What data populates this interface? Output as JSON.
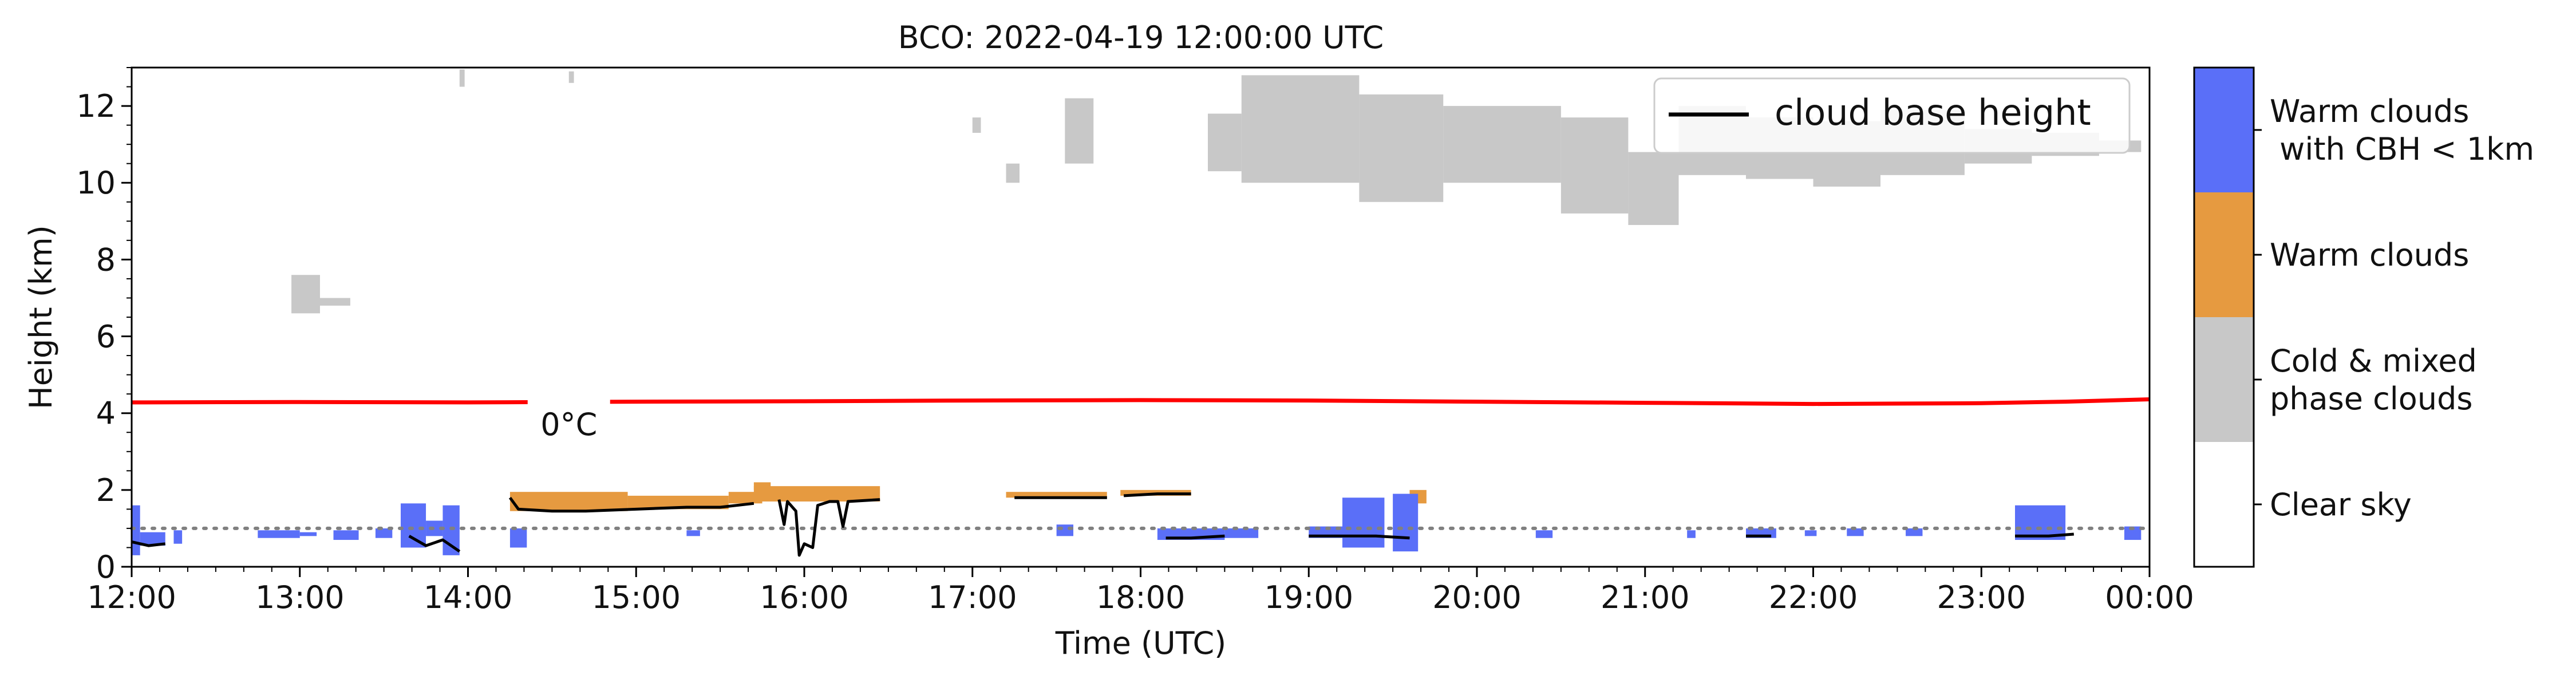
{
  "chart_data": {
    "type": "heatmap",
    "title": "BCO: 2022-04-19 12:00:00 UTC",
    "xlabel": "Time (UTC)",
    "ylabel": "Height (km)",
    "xlim_hours": [
      12,
      24
    ],
    "ylim": [
      0,
      13
    ],
    "x_tick_labels": [
      "12:00",
      "13:00",
      "14:00",
      "15:00",
      "16:00",
      "17:00",
      "18:00",
      "19:00",
      "20:00",
      "21:00",
      "22:00",
      "23:00",
      "00:00"
    ],
    "y_ticks": [
      0,
      2,
      4,
      6,
      8,
      10,
      12
    ],
    "legend": {
      "location": "upper right",
      "entries": [
        {
          "label": "cloud base height",
          "color": "#000000"
        }
      ]
    },
    "freezing_level": {
      "label": "0°C",
      "color": "#ff0000",
      "points": [
        [
          12.0,
          4.28
        ],
        [
          13.0,
          4.29
        ],
        [
          14.0,
          4.28
        ],
        [
          15.0,
          4.3
        ],
        [
          16.0,
          4.31
        ],
        [
          17.0,
          4.33
        ],
        [
          18.0,
          4.34
        ],
        [
          19.0,
          4.33
        ],
        [
          20.0,
          4.3
        ],
        [
          21.0,
          4.27
        ],
        [
          22.0,
          4.24
        ],
        [
          23.0,
          4.26
        ],
        [
          23.5,
          4.3
        ],
        [
          24.0,
          4.36
        ]
      ]
    },
    "reference_line": {
      "height_km": 1.0,
      "color": "#808080",
      "style": "dotted"
    },
    "colorbar": {
      "categories": [
        {
          "label": "Clear sky",
          "color": "#ffffff"
        },
        {
          "label": "Cold & mixed\nphase clouds",
          "color": "#c8c8c8"
        },
        {
          "label": "Warm clouds",
          "color": "#e69a40"
        },
        {
          "label": "Warm clouds\n with CBH < 1km",
          "color": "#5a6ff8"
        }
      ]
    },
    "cloud_regions": [
      {
        "category": "cold_mixed",
        "x": [
          13.95,
          13.98
        ],
        "y": [
          12.5,
          12.95
        ]
      },
      {
        "category": "cold_mixed",
        "x": [
          14.6,
          14.63
        ],
        "y": [
          12.6,
          12.9
        ]
      },
      {
        "category": "cold_mixed",
        "x": [
          12.95,
          13.12
        ],
        "y": [
          6.6,
          7.6
        ]
      },
      {
        "category": "cold_mixed",
        "x": [
          13.12,
          13.3
        ],
        "y": [
          6.8,
          7.0
        ]
      },
      {
        "category": "cold_mixed",
        "x": [
          17.0,
          17.05
        ],
        "y": [
          11.3,
          11.7
        ]
      },
      {
        "category": "cold_mixed",
        "x": [
          17.2,
          17.28
        ],
        "y": [
          10.0,
          10.5
        ]
      },
      {
        "category": "cold_mixed",
        "x": [
          17.55,
          17.72
        ],
        "y": [
          10.5,
          12.2
        ]
      },
      {
        "category": "cold_mixed",
        "x": [
          18.4,
          18.6
        ],
        "y": [
          10.3,
          11.8
        ]
      },
      {
        "category": "cold_mixed",
        "x": [
          18.6,
          19.3
        ],
        "y": [
          10.0,
          12.8
        ]
      },
      {
        "category": "cold_mixed",
        "x": [
          19.3,
          19.8
        ],
        "y": [
          9.5,
          12.3
        ]
      },
      {
        "category": "cold_mixed",
        "x": [
          19.8,
          20.5
        ],
        "y": [
          10.0,
          12.0
        ]
      },
      {
        "category": "cold_mixed",
        "x": [
          20.5,
          20.9
        ],
        "y": [
          9.2,
          11.7
        ]
      },
      {
        "category": "cold_mixed",
        "x": [
          20.9,
          21.2
        ],
        "y": [
          8.9,
          10.8
        ]
      },
      {
        "category": "cold_mixed",
        "x": [
          21.2,
          21.6
        ],
        "y": [
          10.2,
          12.0
        ]
      },
      {
        "category": "cold_mixed",
        "x": [
          21.6,
          22.0
        ],
        "y": [
          10.1,
          11.7
        ]
      },
      {
        "category": "cold_mixed",
        "x": [
          22.0,
          22.4
        ],
        "y": [
          9.9,
          11.6
        ]
      },
      {
        "category": "cold_mixed",
        "x": [
          22.4,
          22.9
        ],
        "y": [
          10.2,
          11.9
        ]
      },
      {
        "category": "cold_mixed",
        "x": [
          22.9,
          23.3
        ],
        "y": [
          10.5,
          11.4
        ]
      },
      {
        "category": "cold_mixed",
        "x": [
          23.3,
          23.7
        ],
        "y": [
          10.7,
          11.3
        ]
      },
      {
        "category": "cold_mixed",
        "x": [
          23.7,
          23.95
        ],
        "y": [
          10.8,
          11.1
        ]
      },
      {
        "category": "warm",
        "x": [
          14.25,
          14.95
        ],
        "y": [
          1.45,
          1.95
        ]
      },
      {
        "category": "warm",
        "x": [
          14.95,
          15.55
        ],
        "y": [
          1.5,
          1.85
        ]
      },
      {
        "category": "warm",
        "x": [
          15.55,
          15.75
        ],
        "y": [
          1.65,
          1.95
        ]
      },
      {
        "category": "warm",
        "x": [
          15.7,
          15.8
        ],
        "y": [
          2.0,
          2.2
        ]
      },
      {
        "category": "warm",
        "x": [
          15.7,
          16.45
        ],
        "y": [
          1.7,
          2.1
        ]
      },
      {
        "category": "warm",
        "x": [
          17.2,
          17.8
        ],
        "y": [
          1.8,
          1.95
        ]
      },
      {
        "category": "warm",
        "x": [
          17.88,
          18.3
        ],
        "y": [
          1.85,
          2.0
        ]
      },
      {
        "category": "warm",
        "x": [
          19.6,
          19.7
        ],
        "y": [
          1.65,
          2.0
        ]
      },
      {
        "category": "warm_low",
        "x": [
          12.0,
          12.05
        ],
        "y": [
          0.3,
          1.6
        ]
      },
      {
        "category": "warm_low",
        "x": [
          12.05,
          12.2
        ],
        "y": [
          0.55,
          0.9
        ]
      },
      {
        "category": "warm_low",
        "x": [
          12.25,
          12.3
        ],
        "y": [
          0.6,
          0.95
        ]
      },
      {
        "category": "warm_low",
        "x": [
          12.75,
          13.0
        ],
        "y": [
          0.75,
          0.95
        ]
      },
      {
        "category": "warm_low",
        "x": [
          13.0,
          13.1
        ],
        "y": [
          0.8,
          0.9
        ]
      },
      {
        "category": "warm_low",
        "x": [
          13.2,
          13.35
        ],
        "y": [
          0.7,
          0.95
        ]
      },
      {
        "category": "warm_low",
        "x": [
          13.45,
          13.55
        ],
        "y": [
          0.75,
          1.0
        ]
      },
      {
        "category": "warm_low",
        "x": [
          13.6,
          13.75
        ],
        "y": [
          0.5,
          1.65
        ]
      },
      {
        "category": "warm_low",
        "x": [
          13.75,
          13.85
        ],
        "y": [
          0.8,
          1.2
        ]
      },
      {
        "category": "warm_low",
        "x": [
          13.85,
          13.95
        ],
        "y": [
          0.3,
          1.6
        ]
      },
      {
        "category": "warm_low",
        "x": [
          14.25,
          14.35
        ],
        "y": [
          0.5,
          1.0
        ]
      },
      {
        "category": "warm_low",
        "x": [
          15.3,
          15.38
        ],
        "y": [
          0.8,
          0.95
        ]
      },
      {
        "category": "warm_low",
        "x": [
          17.5,
          17.6
        ],
        "y": [
          0.8,
          1.1
        ]
      },
      {
        "category": "warm_low",
        "x": [
          18.1,
          18.5
        ],
        "y": [
          0.7,
          1.0
        ]
      },
      {
        "category": "warm_low",
        "x": [
          18.5,
          18.7
        ],
        "y": [
          0.75,
          1.0
        ]
      },
      {
        "category": "warm_low",
        "x": [
          19.0,
          19.2
        ],
        "y": [
          0.75,
          1.05
        ]
      },
      {
        "category": "warm_low",
        "x": [
          19.2,
          19.45
        ],
        "y": [
          0.5,
          1.8
        ]
      },
      {
        "category": "warm_low",
        "x": [
          19.5,
          19.65
        ],
        "y": [
          0.4,
          1.9
        ]
      },
      {
        "category": "warm_low",
        "x": [
          20.35,
          20.45
        ],
        "y": [
          0.75,
          0.95
        ]
      },
      {
        "category": "warm_low",
        "x": [
          21.25,
          21.3
        ],
        "y": [
          0.75,
          0.95
        ]
      },
      {
        "category": "warm_low",
        "x": [
          21.6,
          21.78
        ],
        "y": [
          0.75,
          1.0
        ]
      },
      {
        "category": "warm_low",
        "x": [
          21.95,
          22.02
        ],
        "y": [
          0.8,
          0.95
        ]
      },
      {
        "category": "warm_low",
        "x": [
          22.2,
          22.3
        ],
        "y": [
          0.8,
          1.0
        ]
      },
      {
        "category": "warm_low",
        "x": [
          22.55,
          22.65
        ],
        "y": [
          0.8,
          1.0
        ]
      },
      {
        "category": "warm_low",
        "x": [
          23.2,
          23.5
        ],
        "y": [
          0.7,
          1.6
        ]
      },
      {
        "category": "warm_low",
        "x": [
          23.85,
          23.95
        ],
        "y": [
          0.7,
          1.05
        ]
      }
    ],
    "cloud_base_height": [
      [
        [
          12.0,
          0.65
        ],
        [
          12.1,
          0.55
        ],
        [
          12.2,
          0.6
        ]
      ],
      [
        [
          13.65,
          0.8
        ],
        [
          13.75,
          0.55
        ],
        [
          13.85,
          0.7
        ],
        [
          13.95,
          0.4
        ]
      ],
      [
        [
          14.25,
          1.8
        ],
        [
          14.3,
          1.5
        ],
        [
          14.5,
          1.45
        ],
        [
          14.7,
          1.45
        ],
        [
          15.0,
          1.5
        ],
        [
          15.3,
          1.55
        ],
        [
          15.5,
          1.55
        ],
        [
          15.7,
          1.65
        ]
      ],
      [
        [
          15.85,
          1.75
        ],
        [
          15.88,
          1.1
        ],
        [
          15.9,
          1.7
        ],
        [
          15.95,
          1.45
        ],
        [
          15.97,
          0.3
        ],
        [
          16.0,
          0.6
        ],
        [
          16.05,
          0.5
        ],
        [
          16.08,
          1.6
        ],
        [
          16.15,
          1.7
        ],
        [
          16.2,
          1.7
        ],
        [
          16.23,
          1.05
        ],
        [
          16.26,
          1.7
        ],
        [
          16.45,
          1.75
        ]
      ],
      [
        [
          17.25,
          1.8
        ],
        [
          17.5,
          1.8
        ],
        [
          17.8,
          1.8
        ]
      ],
      [
        [
          17.9,
          1.85
        ],
        [
          18.1,
          1.9
        ],
        [
          18.3,
          1.9
        ]
      ],
      [
        [
          18.15,
          0.75
        ],
        [
          18.3,
          0.75
        ],
        [
          18.5,
          0.8
        ]
      ],
      [
        [
          19.0,
          0.8
        ],
        [
          19.2,
          0.8
        ],
        [
          19.4,
          0.8
        ],
        [
          19.6,
          0.75
        ]
      ],
      [
        [
          21.6,
          0.8
        ],
        [
          21.75,
          0.8
        ]
      ],
      [
        [
          23.2,
          0.8
        ],
        [
          23.4,
          0.8
        ],
        [
          23.55,
          0.85
        ]
      ]
    ]
  }
}
